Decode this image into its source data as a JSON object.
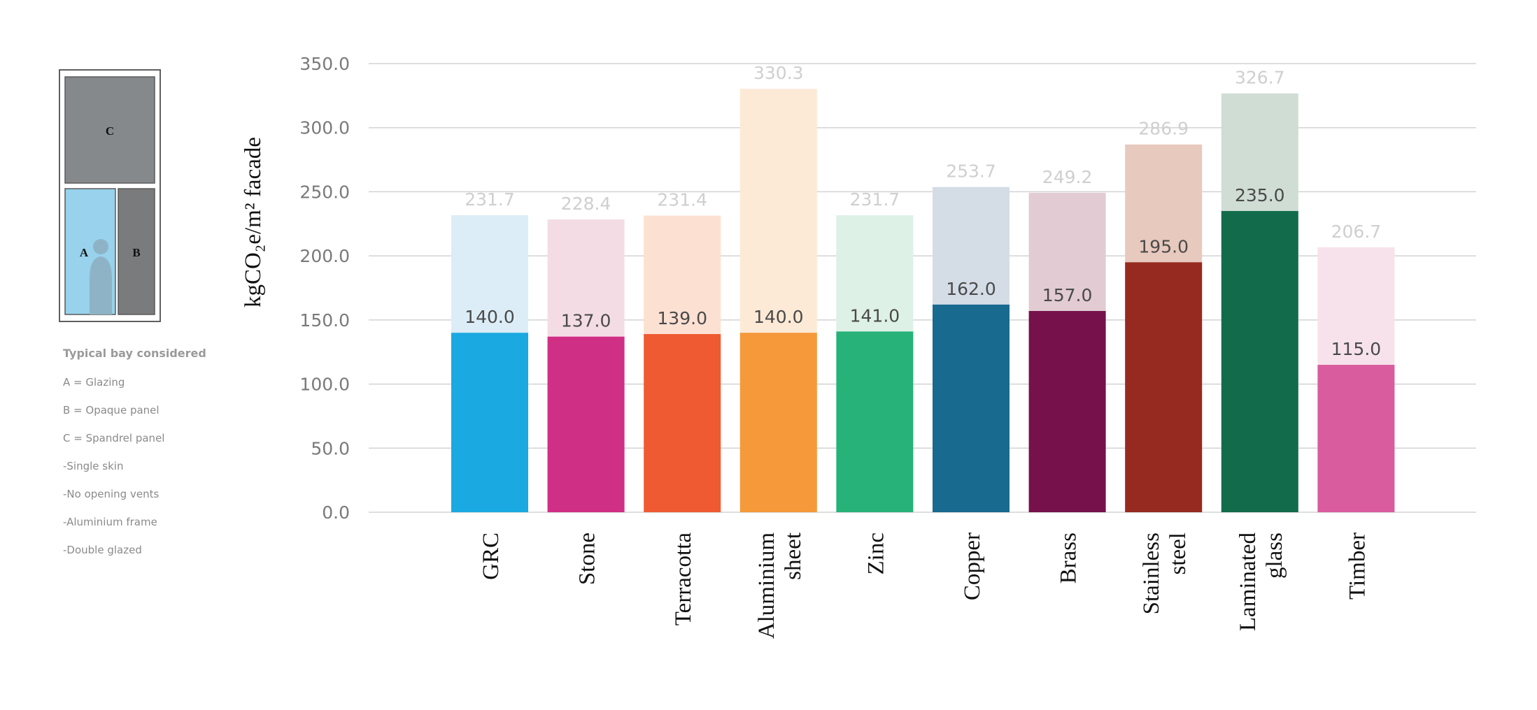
{
  "legend": {
    "title": "Typical bay considered",
    "items": [
      "A = Glazing",
      "B = Opaque panel",
      "C = Spandrel panel",
      "-Single skin",
      "-No opening vents",
      "-Aluminium frame",
      "-Double glazed"
    ],
    "diagram": {
      "panel_a": "A",
      "panel_b": "B",
      "panel_c": "C"
    }
  },
  "chart_data": {
    "type": "bar",
    "ylabel": "kgCO₂e/m² facade",
    "ylim": [
      0,
      350
    ],
    "yticks": [
      "0.0",
      "50.0",
      "100.0",
      "150.0",
      "200.0",
      "250.0",
      "300.0",
      "350.0"
    ],
    "grid": true,
    "categories": [
      [
        "GRC"
      ],
      [
        "Stone"
      ],
      [
        "Terracotta"
      ],
      [
        "Aluminium",
        "sheet"
      ],
      [
        "Zinc"
      ],
      [
        "Copper"
      ],
      [
        "Brass"
      ],
      [
        "Stainless",
        "steel"
      ],
      [
        "Laminated",
        "glass"
      ],
      [
        "Timber"
      ]
    ],
    "series": [
      {
        "values": [
          231.7,
          228.4,
          231.4,
          330.3,
          231.7,
          253.7,
          249.2,
          286.9,
          326.7,
          206.7
        ],
        "labels": [
          "231.7",
          "228.4",
          "231.4",
          "330.3",
          "231.7",
          "253.7",
          "249.2",
          "286.9",
          "326.7",
          "206.7"
        ]
      },
      {
        "values": [
          140.0,
          137.0,
          139.0,
          140.0,
          141.0,
          162.0,
          157.0,
          195.0,
          235.0,
          115.0
        ],
        "labels": [
          "140.0",
          "137.0",
          "139.0",
          "140.0",
          "141.0",
          "162.0",
          "157.0",
          "195.0",
          "235.0",
          "115.0"
        ]
      }
    ],
    "colors": [
      "#1BA9E1",
      "#D02F86",
      "#EF5A32",
      "#F5993A",
      "#27B27A",
      "#186A8F",
      "#76114B",
      "#962A20",
      "#126C4C",
      "#D95C9E"
    ],
    "light_colors": [
      "#DCEDF7",
      "#F4DCE5",
      "#FCE0D2",
      "#FDEAD6",
      "#DDF1E6",
      "#D4DDE6",
      "#E2CBD3",
      "#E8C9BD",
      "#CFDDD4",
      "#F7E2EB"
    ]
  }
}
